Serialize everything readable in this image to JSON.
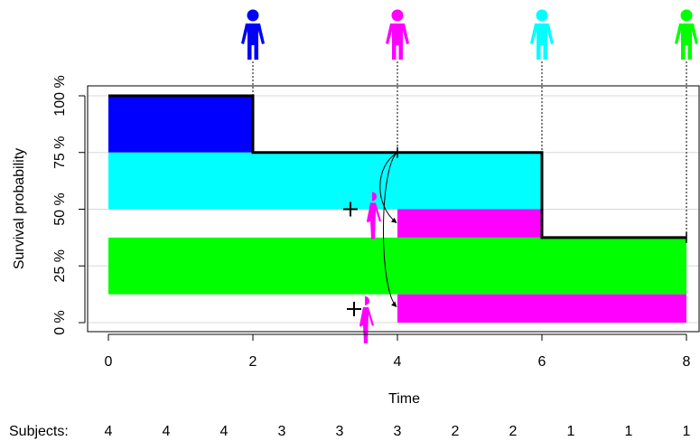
{
  "chart_data": {
    "type": "survival-step",
    "xlabel": "Time",
    "ylabel": "Survival probability",
    "xlim": [
      0,
      8
    ],
    "ylim": [
      0,
      1
    ],
    "x_ticks": [
      0,
      2,
      4,
      6,
      8
    ],
    "x_tick_labels": [
      "0",
      "2",
      "4",
      "6",
      "8"
    ],
    "y_ticks": [
      0,
      0.25,
      0.5,
      0.75,
      1.0
    ],
    "y_tick_labels": [
      "0 %",
      "25 %",
      "50 %",
      "75 %",
      "100 %"
    ],
    "grid": "horizontal",
    "survival_curve": {
      "x": [
        0,
        2,
        2,
        6,
        6,
        8
      ],
      "y": [
        1.0,
        1.0,
        0.75,
        0.75,
        0.375,
        0.375
      ]
    },
    "blocks": [
      {
        "color": "#0000FF",
        "x0": 0,
        "x1": 2,
        "y0": 0.75,
        "y1": 1.0
      },
      {
        "color": "#00FFFF",
        "x0": 0,
        "x1": 6,
        "y0": 0.5,
        "y1": 0.75
      },
      {
        "color": "#00FF00",
        "x0": 0,
        "x1": 8,
        "y0": 0.125,
        "y1": 0.375
      },
      {
        "color": "#FF00FF",
        "x0": 4,
        "x1": 6,
        "y0": 0.375,
        "y1": 0.5
      },
      {
        "color": "#FF00FF",
        "x0": 4,
        "x1": 8,
        "y0": 0.0,
        "y1": 0.125
      }
    ],
    "events": [
      {
        "time": 2,
        "color": "#0000FF",
        "type": "event"
      },
      {
        "time": 4,
        "color": "#FF00FF",
        "type": "censored"
      },
      {
        "time": 6,
        "color": "#00FFFF",
        "type": "event"
      },
      {
        "time": 8,
        "color": "#00FF00",
        "type": "event"
      }
    ],
    "censor_redistribution": {
      "from_time": 4,
      "from_y": 0.75,
      "plus_marks": [
        {
          "x": 3.35,
          "y": 0.5
        },
        {
          "x": 3.4,
          "y": 0.06
        }
      ],
      "partial_figures": [
        {
          "x": 3.65,
          "y": 0.56,
          "color": "#FF00FF"
        },
        {
          "x": 3.55,
          "y": 0.1,
          "color": "#FF00FF"
        }
      ],
      "arrows_to": [
        {
          "x": 4.0,
          "y": 0.44
        },
        {
          "x": 4.0,
          "y": 0.07
        }
      ]
    },
    "subjects": {
      "label": "Subjects:",
      "x": [
        0,
        0.8,
        1.6,
        2.4,
        3.2,
        4.0,
        4.8,
        5.6,
        6.4,
        7.2,
        8.0
      ],
      "counts": [
        "4",
        "4",
        "4",
        "3",
        "3",
        "3",
        "2",
        "2",
        "1",
        "1",
        "1"
      ]
    }
  }
}
